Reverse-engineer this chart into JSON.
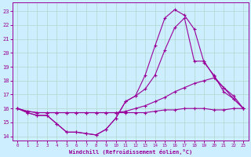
{
  "xlabel": "Windchill (Refroidissement éolien,°C)",
  "bg_color": "#cceeff",
  "line_color": "#990099",
  "grid_color": "#b0d8cc",
  "xlim": [
    -0.5,
    23.5
  ],
  "ylim": [
    13.7,
    23.6
  ],
  "yticks": [
    14,
    15,
    16,
    17,
    18,
    19,
    20,
    21,
    22,
    23
  ],
  "xticks": [
    0,
    1,
    2,
    3,
    4,
    5,
    6,
    7,
    8,
    9,
    10,
    11,
    12,
    13,
    14,
    15,
    16,
    17,
    18,
    19,
    20,
    21,
    22,
    23
  ],
  "line1": [
    16.0,
    15.7,
    15.5,
    15.5,
    14.9,
    14.3,
    14.3,
    14.2,
    14.1,
    14.5,
    15.3,
    16.5,
    16.9,
    18.4,
    20.5,
    22.5,
    23.1,
    22.7,
    21.7,
    19.3,
    18.4,
    17.2,
    16.7,
    16.0
  ],
  "line2": [
    16.0,
    15.7,
    15.5,
    15.5,
    14.9,
    14.3,
    14.3,
    14.2,
    14.1,
    14.5,
    15.3,
    16.5,
    16.9,
    17.4,
    18.4,
    20.2,
    21.8,
    22.5,
    19.4,
    19.4,
    18.3,
    17.5,
    16.7,
    16.0
  ],
  "line3": [
    16.0,
    15.8,
    15.7,
    15.7,
    15.7,
    15.7,
    15.7,
    15.7,
    15.7,
    15.7,
    15.7,
    15.8,
    16.0,
    16.2,
    16.5,
    16.8,
    17.2,
    17.5,
    17.8,
    18.0,
    18.2,
    17.5,
    16.9,
    16.0
  ],
  "line4": [
    16.0,
    15.8,
    15.7,
    15.7,
    15.7,
    15.7,
    15.7,
    15.7,
    15.7,
    15.7,
    15.7,
    15.7,
    15.7,
    15.7,
    15.8,
    15.9,
    15.9,
    16.0,
    16.0,
    16.0,
    15.9,
    15.9,
    16.0,
    16.0
  ]
}
